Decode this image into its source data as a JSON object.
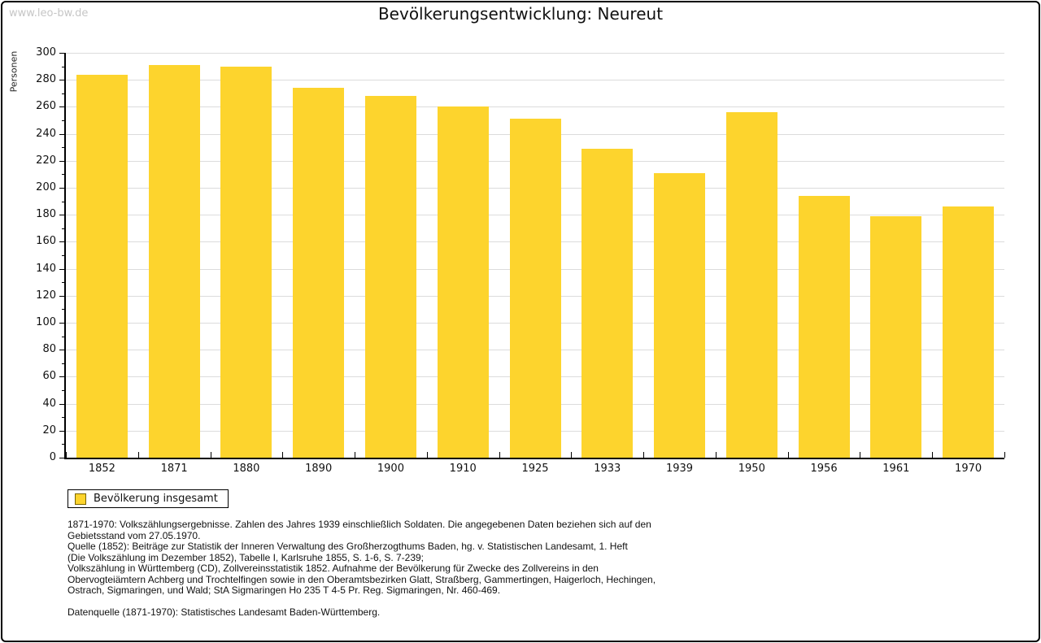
{
  "watermark": "www.leo-bw.de",
  "title": "Bevölkerungsentwicklung: Neureut",
  "legend": {
    "label": "Bevölkerung insgesamt"
  },
  "colors": {
    "bar": "#fdd42d",
    "legend_swatch_border": "#7a6400",
    "grid": "#dcdcdc",
    "axis": "#000000",
    "watermark": "#c6c6c6"
  },
  "chart_data": {
    "type": "bar",
    "title": "Bevölkerungsentwicklung: Neureut",
    "ylabel": "Personen",
    "xlabel": "",
    "categories": [
      "1852",
      "1871",
      "1880",
      "1890",
      "1900",
      "1910",
      "1925",
      "1933",
      "1939",
      "1950",
      "1956",
      "1961",
      "1970"
    ],
    "series": [
      {
        "name": "Bevölkerung insgesamt",
        "values": [
          284,
          291,
          290,
          274,
          268,
          260,
          251,
          229,
          211,
          256,
          194,
          179,
          186
        ]
      }
    ],
    "ylim": [
      0,
      300
    ],
    "ytick_step": 20,
    "yminor_step": 10,
    "grid": true,
    "legend_position": "bottom-left"
  },
  "footer": {
    "lines": [
      "1871-1970: Volkszählungsergebnisse. Zahlen des Jahres 1939 einschließlich Soldaten. Die angegebenen Daten beziehen sich auf den",
      "Gebietsstand vom 27.05.1970.",
      "Quelle (1852): Beiträge zur Statistik der Inneren Verwaltung des Großherzogthums Baden, hg. v. Statistischen Landesamt, 1. Heft",
      "(Die Volkszählung im Dezember 1852), Tabelle I, Karlsruhe 1855, S. 1-6, S. 7-239;",
      "Volkszählung in Württemberg (CD), Zollvereinsstatistik 1852. Aufnahme der Bevölkerung für Zwecke des Zollvereins in den",
      "Obervogteiämtern Achberg und Trochtelfingen sowie in den Oberamtsbezirken Glatt, Straßberg, Gammertingen, Haigerloch, Hechingen,",
      "Ostrach, Sigmaringen, und Wald; StA Sigmaringen Ho 235 T 4-5 Pr. Reg. Sigmaringen, Nr. 460-469.",
      "",
      "Datenquelle (1871-1970): Statistisches Landesamt Baden-Württemberg."
    ]
  }
}
